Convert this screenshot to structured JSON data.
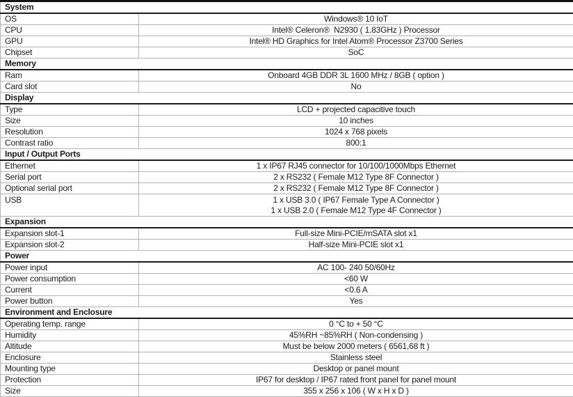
{
  "table": {
    "colors": {
      "border_light": "#b3b3b3",
      "border_dark": "#1a1a1a",
      "text": "#1a1a1a",
      "background": "#ffffff"
    },
    "sections": [
      {
        "title": "System",
        "rows": [
          {
            "label": "OS",
            "value_lines": [
              "Windows® 10 IoT"
            ]
          },
          {
            "label": "CPU",
            "value_lines": [
              "Intel® Celeron®  N2930 ( 1.83GHz ) Processor"
            ]
          },
          {
            "label": "GPU",
            "value_lines": [
              "Intel® HD Graphics for Intel Atom® Processor Z3700 Series"
            ]
          },
          {
            "label": "Chipset",
            "value_lines": [
              "SoC"
            ]
          }
        ]
      },
      {
        "title": "Memory",
        "rows": [
          {
            "label": "Ram",
            "value_lines": [
              "Onboard 4GB DDR 3L 1600 MHz / 8GB ( option )"
            ]
          },
          {
            "label": "Card slot",
            "value_lines": [
              "No"
            ]
          }
        ]
      },
      {
        "title": "Display",
        "rows": [
          {
            "label": "Type",
            "value_lines": [
              "LCD + projected capacitive touch"
            ]
          },
          {
            "label": "Size",
            "value_lines": [
              "10 inches"
            ]
          },
          {
            "label": "Resolution",
            "value_lines": [
              "1024 x 768 pixels"
            ]
          },
          {
            "label": "Contrast ratio",
            "value_lines": [
              "800:1"
            ]
          }
        ]
      },
      {
        "title": "Input / Output Ports",
        "rows": [
          {
            "label": "Ethernet",
            "value_lines": [
              "1 x IP67 RJ45 connector for 10/100/1000Mbps Ethernet"
            ]
          },
          {
            "label": "Serial port",
            "value_lines": [
              "2 x RS232 ( Female M12 Type 8F Connector )"
            ]
          },
          {
            "label": "Optional serial port",
            "value_lines": [
              "2 x RS232 ( Female M12 Type 8F Connector )"
            ]
          },
          {
            "label": "USB",
            "value_lines": [
              "1 x USB 3.0 ( IP67 Female Type A Connector )",
              "1 x USB 2.0 ( Female M12 Type 4F Connector )"
            ]
          }
        ]
      },
      {
        "title": "Expansion",
        "rows": [
          {
            "label": "Expansion slot-1",
            "value_lines": [
              "Full-size Mini-PCIE/mSATA slot x1"
            ]
          },
          {
            "label": "Expansion slot-2",
            "value_lines": [
              "Half-size Mini-PCIE slot x1"
            ]
          }
        ]
      },
      {
        "title": "Power",
        "rows": [
          {
            "label": "Power input",
            "value_lines": [
              "AC 100- 240 50/60Hz"
            ]
          },
          {
            "label": "Power consumption",
            "value_lines": [
              "<60 W"
            ]
          },
          {
            "label": "Current",
            "value_lines": [
              "<0.6 A"
            ]
          },
          {
            "label": "Power button",
            "value_lines": [
              "Yes"
            ]
          }
        ]
      },
      {
        "title": "Environment and Enclosure",
        "rows": [
          {
            "label": "Operating temp. range",
            "value_lines": [
              "0 °C to + 50 °C"
            ]
          },
          {
            "label": "Humidity",
            "value_lines": [
              "45%RH ~85%RH ( Non-condensing )"
            ]
          },
          {
            "label": "Altitude",
            "value_lines": [
              "Must be below 2000 meters ( 6561,68 ft )"
            ]
          },
          {
            "label": "Enclosure",
            "value_lines": [
              "Stainless steel"
            ]
          },
          {
            "label": "Mounting type",
            "value_lines": [
              "Desktop or panel mount"
            ]
          },
          {
            "label": "Protection",
            "value_lines": [
              "IP67 for desktop / IP67 rated front panel for panel mount"
            ]
          },
          {
            "label": "Size",
            "value_lines": [
              "355 x 256 x 106 ( W x H x D )"
            ]
          }
        ]
      }
    ]
  }
}
